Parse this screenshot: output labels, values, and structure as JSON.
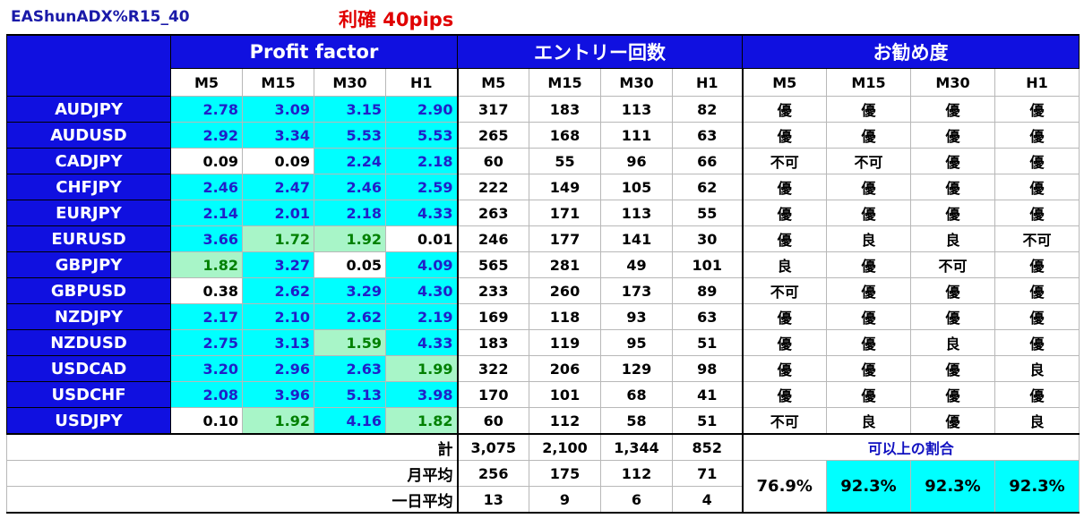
{
  "title": "EAShunADX%R15_40",
  "subtitle": "利確 40pips",
  "headers": {
    "profit_factor": "Profit factor",
    "entries": "エントリー回数",
    "recommend": "お勧め度",
    "timeframes": [
      "M5",
      "M15",
      "M30",
      "H1"
    ]
  },
  "rows": [
    {
      "pair": "AUDJPY",
      "pf": [
        "2.78",
        "3.09",
        "3.15",
        "2.90"
      ],
      "pfc": [
        "c",
        "c",
        "c",
        "c"
      ],
      "cnt": [
        "317",
        "183",
        "113",
        "82"
      ],
      "rec": [
        "優",
        "優",
        "優",
        "優"
      ]
    },
    {
      "pair": "AUDUSD",
      "pf": [
        "2.92",
        "3.34",
        "5.53",
        "5.53"
      ],
      "pfc": [
        "c",
        "c",
        "c",
        "c"
      ],
      "cnt": [
        "265",
        "168",
        "111",
        "63"
      ],
      "rec": [
        "優",
        "優",
        "優",
        "優"
      ]
    },
    {
      "pair": "CADJPY",
      "pf": [
        "0.09",
        "0.09",
        "2.24",
        "2.18"
      ],
      "pfc": [
        "w",
        "w",
        "c",
        "c"
      ],
      "cnt": [
        "60",
        "55",
        "96",
        "66"
      ],
      "rec": [
        "不可",
        "不可",
        "優",
        "優"
      ]
    },
    {
      "pair": "CHFJPY",
      "pf": [
        "2.46",
        "2.47",
        "2.46",
        "2.59"
      ],
      "pfc": [
        "c",
        "c",
        "c",
        "c"
      ],
      "cnt": [
        "222",
        "149",
        "105",
        "62"
      ],
      "rec": [
        "優",
        "優",
        "優",
        "優"
      ]
    },
    {
      "pair": "EURJPY",
      "pf": [
        "2.14",
        "2.01",
        "2.18",
        "4.33"
      ],
      "pfc": [
        "c",
        "c",
        "c",
        "c"
      ],
      "cnt": [
        "263",
        "171",
        "113",
        "55"
      ],
      "rec": [
        "優",
        "優",
        "優",
        "優"
      ]
    },
    {
      "pair": "EURUSD",
      "pf": [
        "3.66",
        "1.72",
        "1.92",
        "0.01"
      ],
      "pfc": [
        "c",
        "g",
        "g",
        "w"
      ],
      "cnt": [
        "246",
        "177",
        "141",
        "30"
      ],
      "rec": [
        "優",
        "良",
        "良",
        "不可"
      ]
    },
    {
      "pair": "GBPJPY",
      "pf": [
        "1.82",
        "3.27",
        "0.05",
        "4.09"
      ],
      "pfc": [
        "g",
        "c",
        "w",
        "c"
      ],
      "cnt": [
        "565",
        "281",
        "49",
        "101"
      ],
      "rec": [
        "良",
        "優",
        "不可",
        "優"
      ]
    },
    {
      "pair": "GBPUSD",
      "pf": [
        "0.38",
        "2.62",
        "3.29",
        "4.30"
      ],
      "pfc": [
        "w",
        "c",
        "c",
        "c"
      ],
      "cnt": [
        "233",
        "260",
        "173",
        "89"
      ],
      "rec": [
        "不可",
        "優",
        "優",
        "優"
      ]
    },
    {
      "pair": "NZDJPY",
      "pf": [
        "2.17",
        "2.10",
        "2.62",
        "2.19"
      ],
      "pfc": [
        "c",
        "c",
        "c",
        "c"
      ],
      "cnt": [
        "169",
        "118",
        "93",
        "63"
      ],
      "rec": [
        "優",
        "優",
        "優",
        "優"
      ]
    },
    {
      "pair": "NZDUSD",
      "pf": [
        "2.75",
        "3.13",
        "1.59",
        "4.33"
      ],
      "pfc": [
        "c",
        "c",
        "g",
        "c"
      ],
      "cnt": [
        "183",
        "119",
        "95",
        "51"
      ],
      "rec": [
        "優",
        "優",
        "良",
        "優"
      ]
    },
    {
      "pair": "USDCAD",
      "pf": [
        "3.20",
        "2.96",
        "2.63",
        "1.99"
      ],
      "pfc": [
        "c",
        "c",
        "c",
        "g"
      ],
      "cnt": [
        "322",
        "206",
        "129",
        "98"
      ],
      "rec": [
        "優",
        "優",
        "優",
        "良"
      ]
    },
    {
      "pair": "USDCHF",
      "pf": [
        "2.08",
        "3.96",
        "5.13",
        "3.98"
      ],
      "pfc": [
        "c",
        "c",
        "c",
        "c"
      ],
      "cnt": [
        "170",
        "101",
        "68",
        "41"
      ],
      "rec": [
        "優",
        "優",
        "優",
        "優"
      ]
    },
    {
      "pair": "USDJPY",
      "pf": [
        "0.10",
        "1.92",
        "4.16",
        "1.82"
      ],
      "pfc": [
        "w",
        "g",
        "c",
        "g"
      ],
      "cnt": [
        "60",
        "112",
        "58",
        "51"
      ],
      "rec": [
        "不可",
        "良",
        "優",
        "良"
      ]
    }
  ],
  "summary": {
    "total_label": "計",
    "total": [
      "3,075",
      "2,100",
      "1,344",
      "852"
    ],
    "monthly_label": "月平均",
    "monthly": [
      "256",
      "175",
      "112",
      "71"
    ],
    "daily_label": "一日平均",
    "daily": [
      "13",
      "9",
      "6",
      "4"
    ],
    "ratio_label": "可以上の割合",
    "ratio": [
      "76.9%",
      "92.3%",
      "92.3%",
      "92.3%"
    ],
    "ratio_colors": [
      "w",
      "c",
      "c",
      "c"
    ]
  },
  "colors": {
    "header_blue": "#1010e0",
    "cyan": "#00ffff",
    "green_cell": "#a8f5c8",
    "rec_yu": "#1010c0",
    "rec_ryo": "#00a000",
    "rec_fuka": "#e00000"
  }
}
